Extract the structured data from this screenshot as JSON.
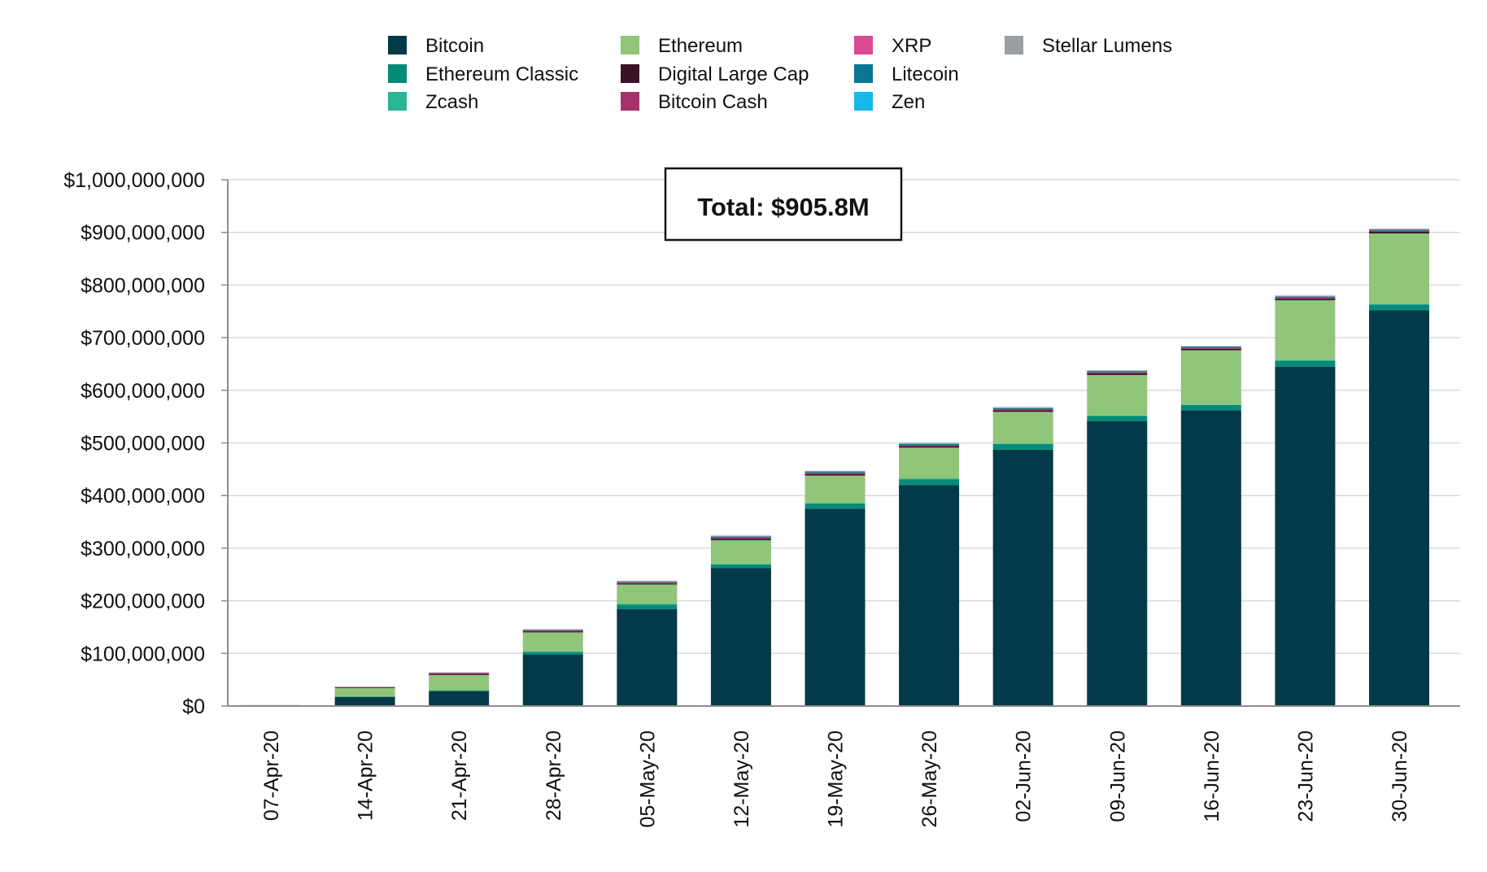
{
  "chart_data": {
    "type": "bar",
    "stacked": true,
    "categories": [
      "07-Apr-20",
      "14-Apr-20",
      "21-Apr-20",
      "28-Apr-20",
      "05-May-20",
      "12-May-20",
      "19-May-20",
      "26-May-20",
      "02-Jun-20",
      "09-Jun-20",
      "16-Jun-20",
      "23-Jun-20",
      "30-Jun-20"
    ],
    "series": [
      {
        "name": "Bitcoin",
        "color": "#023a49",
        "values": [
          0,
          17000000,
          28000000,
          98000000,
          184000000,
          262000000,
          375000000,
          420000000,
          487000000,
          541000000,
          562000000,
          645000000,
          752000000
        ]
      },
      {
        "name": "Ethereum Classic",
        "color": "#058b77",
        "values": [
          0,
          1000000,
          2000000,
          5000000,
          9000000,
          7000000,
          10000000,
          11000000,
          11000000,
          10000000,
          10000000,
          11000000,
          11000000
        ]
      },
      {
        "name": "Zcash",
        "color": "#2bb594",
        "values": [
          0,
          0,
          0,
          1000000,
          1000000,
          1000000,
          1000000,
          1000000,
          1000000,
          1000000,
          1000000,
          1000000,
          1000000
        ]
      },
      {
        "name": "Ethereum",
        "color": "#90c57a",
        "values": [
          2000000,
          16000000,
          29000000,
          36000000,
          37000000,
          45000000,
          52000000,
          59000000,
          60000000,
          77000000,
          103000000,
          114000000,
          134000000
        ]
      },
      {
        "name": "Digital Large Cap",
        "color": "#3b1327",
        "values": [
          0,
          1000000,
          2000000,
          2000000,
          2000000,
          3000000,
          3000000,
          3000000,
          3000000,
          3000000,
          3000000,
          3000000,
          3000000
        ]
      },
      {
        "name": "Bitcoin Cash",
        "color": "#a5336b",
        "values": [
          0,
          1000000,
          2000000,
          2000000,
          2000000,
          2000000,
          2000000,
          2000000,
          2000000,
          2000000,
          2000000,
          2000000,
          2000000
        ]
      },
      {
        "name": "XRP",
        "color": "#d94b93",
        "values": [
          0,
          0,
          0,
          0,
          0,
          0,
          0,
          0,
          0,
          0,
          0,
          0,
          0
        ]
      },
      {
        "name": "Litecoin",
        "color": "#0a7595",
        "values": [
          0,
          0,
          0,
          1000000,
          1000000,
          2000000,
          2000000,
          2000000,
          2000000,
          2000000,
          2000000,
          2000000,
          2000000
        ]
      },
      {
        "name": "Zen",
        "color": "#16b9e8",
        "values": [
          0,
          0,
          0,
          0,
          0,
          0,
          0,
          0,
          0,
          0,
          0,
          0,
          0
        ]
      },
      {
        "name": "Stellar Lumens",
        "color": "#9b9ea3",
        "values": [
          0,
          1000000,
          1000000,
          1000000,
          2000000,
          2000000,
          2000000,
          2000000,
          2000000,
          2000000,
          1000000,
          2000000,
          2000000
        ]
      }
    ],
    "y_ticks": [
      "$0",
      "$100,000,000",
      "$200,000,000",
      "$300,000,000",
      "$400,000,000",
      "$500,000,000",
      "$600,000,000",
      "$700,000,000",
      "$800,000,000",
      "$900,000,000",
      "$1,000,000,000"
    ],
    "ylim": [
      0,
      1000000000
    ],
    "grid": true,
    "legend_position": "top",
    "annotation": "Total: $905.8M"
  }
}
